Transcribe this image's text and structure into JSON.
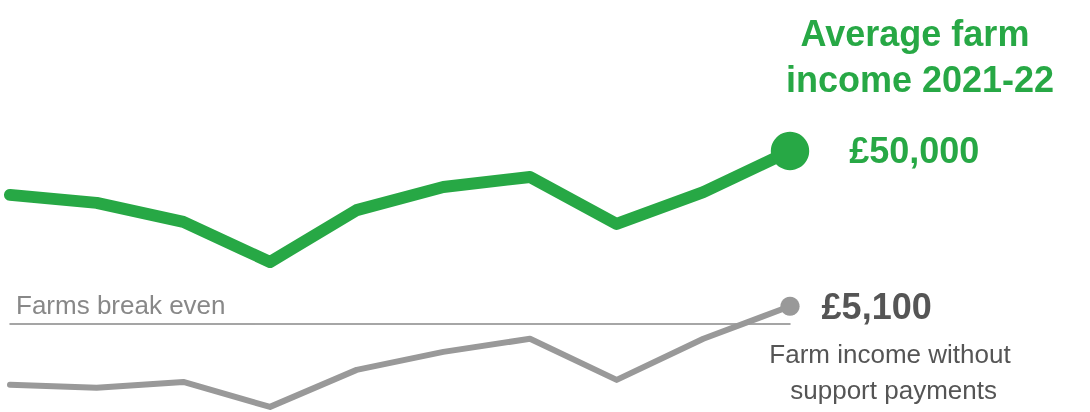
{
  "chart_data": {
    "type": "line",
    "categories": [
      null,
      null,
      null,
      null,
      null,
      null,
      null,
      null,
      null,
      null
    ],
    "series": [
      {
        "name": "Average farm income 2021-22",
        "color": "#27a845",
        "values": [
          37300,
          35000,
          29500,
          17900,
          32900,
          39600,
          42500,
          28900,
          38100,
          50000
        ],
        "value_labels": [
          null,
          null,
          null,
          null,
          null,
          null,
          null,
          null,
          null,
          "£50,000"
        ]
      },
      {
        "name": "Farm income without support payments",
        "color": "#999999",
        "values": [
          -17600,
          -18500,
          -16800,
          -24000,
          -13300,
          -8100,
          -4300,
          -16200,
          -4300,
          5100
        ],
        "value_labels": [
          null,
          null,
          null,
          null,
          null,
          null,
          null,
          null,
          null,
          "£5,100"
        ]
      }
    ],
    "grid": false,
    "legend": "right",
    "annotations": [
      "Farms break even"
    ]
  }
}
